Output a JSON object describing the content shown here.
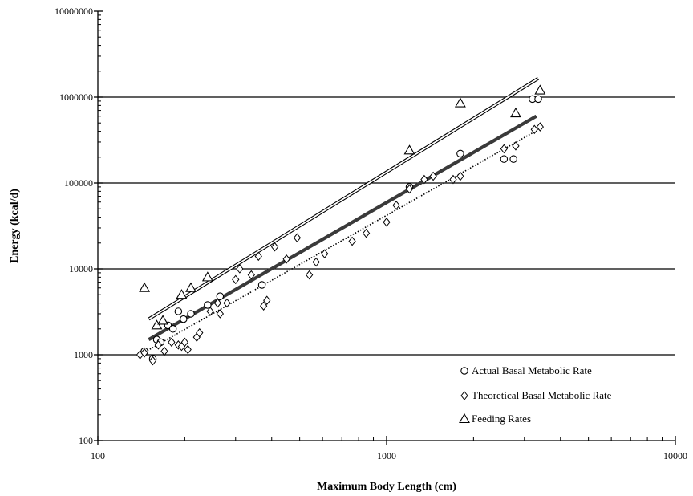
{
  "chart_data": {
    "type": "scatter",
    "title": "",
    "xlabel": "Maximum Body Length (cm)",
    "ylabel": "Energy (kcal/d)",
    "xscale": "log",
    "yscale": "log",
    "xlim": [
      100,
      10000
    ],
    "ylim": [
      100,
      10000000
    ],
    "x_ticks": [
      {
        "value": 100,
        "label": "100"
      },
      {
        "value": 1000,
        "label": "1000"
      },
      {
        "value": 10000,
        "label": "10000"
      }
    ],
    "y_ticks": [
      {
        "value": 100,
        "label": "100"
      },
      {
        "value": 1000,
        "label": "1000"
      },
      {
        "value": 10000,
        "label": "10000"
      },
      {
        "value": 100000,
        "label": "100000"
      },
      {
        "value": 1000000,
        "label": "1000000"
      },
      {
        "value": 10000000,
        "label": "10000000"
      }
    ],
    "grid": "horizontal major gridlines",
    "legend_position": "bottom-right",
    "series": [
      {
        "name": "Actual Basal Metabolic Rate",
        "marker": "circle",
        "trendline": {
          "style": "thick-solid",
          "from": [
            150,
            1500
          ],
          "to": [
            3300,
            600000
          ]
        },
        "points": [
          [
            145,
            1100
          ],
          [
            155,
            900
          ],
          [
            160,
            1500
          ],
          [
            165,
            1400
          ],
          [
            175,
            2200
          ],
          [
            182,
            2000
          ],
          [
            190,
            3200
          ],
          [
            198,
            2600
          ],
          [
            210,
            3000
          ],
          [
            240,
            3800
          ],
          [
            265,
            4800
          ],
          [
            370,
            6500
          ],
          [
            1200,
            90000
          ],
          [
            1800,
            220000
          ],
          [
            2550,
            190000
          ],
          [
            2750,
            190000
          ],
          [
            3200,
            950000
          ],
          [
            3350,
            950000
          ]
        ]
      },
      {
        "name": "Theoretical Basal Metabolic Rate",
        "marker": "diamond",
        "trendline": {
          "style": "dotted",
          "from": [
            140,
            1000
          ],
          "to": [
            3400,
            430000
          ]
        },
        "points": [
          [
            140,
            1000
          ],
          [
            145,
            1050
          ],
          [
            155,
            850
          ],
          [
            162,
            1300
          ],
          [
            170,
            1100
          ],
          [
            180,
            1400
          ],
          [
            190,
            1300
          ],
          [
            195,
            1250
          ],
          [
            200,
            1400
          ],
          [
            205,
            1150
          ],
          [
            220,
            1600
          ],
          [
            225,
            1800
          ],
          [
            245,
            3200
          ],
          [
            260,
            4000
          ],
          [
            265,
            3000
          ],
          [
            280,
            4000
          ],
          [
            300,
            7500
          ],
          [
            310,
            10000
          ],
          [
            340,
            8500
          ],
          [
            360,
            14000
          ],
          [
            375,
            3700
          ],
          [
            385,
            4300
          ],
          [
            410,
            18000
          ],
          [
            450,
            13000
          ],
          [
            490,
            23000
          ],
          [
            540,
            8500
          ],
          [
            570,
            12000
          ],
          [
            610,
            15000
          ],
          [
            760,
            21000
          ],
          [
            850,
            26000
          ],
          [
            1000,
            35000
          ],
          [
            1080,
            55000
          ],
          [
            1200,
            85000
          ],
          [
            1350,
            110000
          ],
          [
            1450,
            120000
          ],
          [
            1700,
            110000
          ],
          [
            1800,
            120000
          ],
          [
            2550,
            250000
          ],
          [
            2800,
            270000
          ],
          [
            3250,
            420000
          ],
          [
            3400,
            450000
          ]
        ]
      },
      {
        "name": "Feeding Rates",
        "marker": "triangle",
        "trendline": {
          "style": "thin-double",
          "from": [
            150,
            2600
          ],
          "to": [
            3350,
            1650000
          ]
        },
        "points": [
          [
            145,
            6000
          ],
          [
            160,
            2200
          ],
          [
            168,
            2500
          ],
          [
            195,
            5000
          ],
          [
            210,
            6000
          ],
          [
            240,
            8000
          ],
          [
            1200,
            240000
          ],
          [
            1800,
            850000
          ],
          [
            2800,
            650000
          ],
          [
            3400,
            1200000
          ]
        ]
      }
    ]
  }
}
